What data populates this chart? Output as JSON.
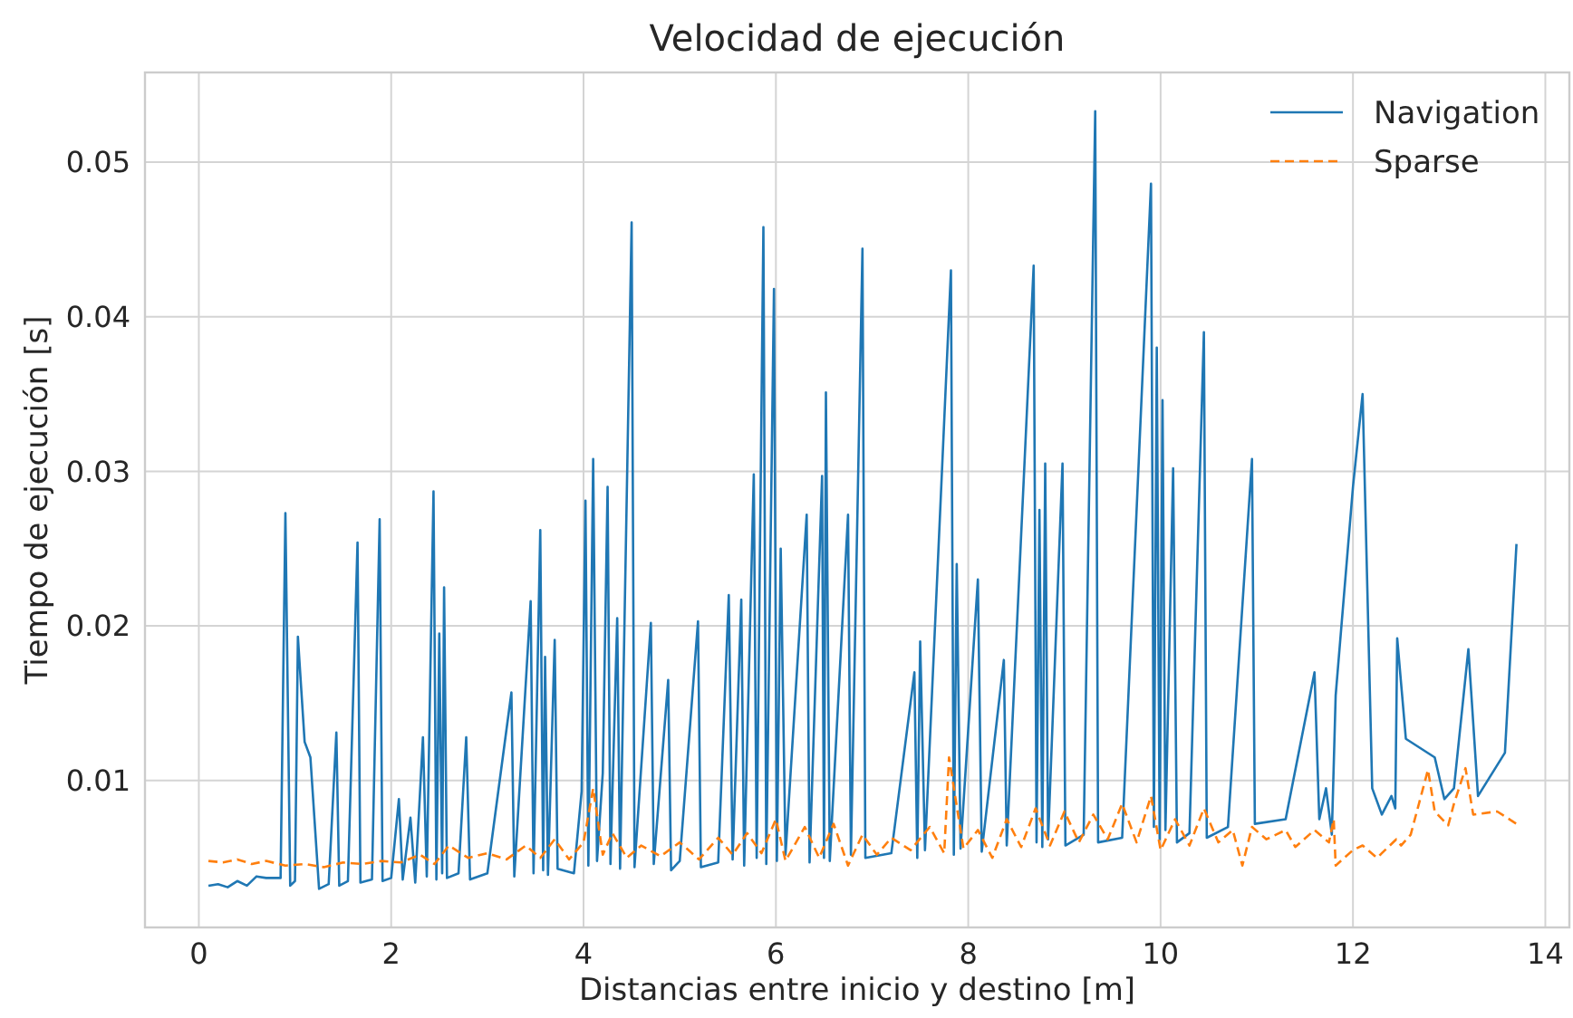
{
  "chart_data": {
    "type": "line",
    "title": "Velocidad de ejecución",
    "xlabel": "Distancias entre inicio y destino [m]",
    "ylabel": "Tiempo de ejecución [s]",
    "xlim": [
      -0.56,
      14.25
    ],
    "ylim": [
      0.0005,
      0.0558
    ],
    "xticks": [
      0,
      2,
      4,
      6,
      8,
      10,
      12,
      14
    ],
    "yticks": [
      0.01,
      0.02,
      0.03,
      0.04,
      0.05
    ],
    "grid": true,
    "legend": "top right",
    "series": [
      {
        "name": "Navigation",
        "color": "#1f77b4",
        "line_style": "solid",
        "x": [
          0.1,
          0.2,
          0.3,
          0.4,
          0.5,
          0.6,
          0.7,
          0.85,
          0.9,
          0.95,
          1.0,
          1.03,
          1.1,
          1.16,
          1.25,
          1.35,
          1.43,
          1.46,
          1.55,
          1.65,
          1.68,
          1.8,
          1.88,
          1.91,
          2.0,
          2.08,
          2.12,
          2.2,
          2.25,
          2.33,
          2.37,
          2.44,
          2.47,
          2.5,
          2.53,
          2.55,
          2.58,
          2.7,
          2.78,
          2.82,
          3.0,
          3.25,
          3.28,
          3.45,
          3.48,
          3.55,
          3.58,
          3.6,
          3.63,
          3.7,
          3.73,
          3.9,
          3.98,
          4.02,
          4.05,
          4.1,
          4.14,
          4.2,
          4.25,
          4.28,
          4.35,
          4.38,
          4.5,
          4.53,
          4.7,
          4.73,
          4.88,
          4.91,
          5.0,
          5.19,
          5.22,
          5.4,
          5.51,
          5.55,
          5.64,
          5.67,
          5.77,
          5.8,
          5.87,
          5.9,
          5.98,
          6.01,
          6.05,
          6.1,
          6.32,
          6.35,
          6.48,
          6.5,
          6.52,
          6.56,
          6.75,
          6.78,
          6.9,
          6.93,
          7.2,
          7.44,
          7.47,
          7.5,
          7.55,
          7.82,
          7.85,
          7.88,
          7.92,
          8.1,
          8.14,
          8.37,
          8.4,
          8.68,
          8.71,
          8.74,
          8.77,
          8.8,
          8.83,
          8.98,
          9.01,
          9.2,
          9.32,
          9.35,
          9.6,
          9.9,
          9.93,
          9.96,
          9.99,
          10.02,
          10.05,
          10.13,
          10.17,
          10.3,
          10.45,
          10.48,
          10.7,
          10.95,
          10.98,
          11.3,
          11.6,
          11.65,
          11.72,
          11.78,
          11.82,
          12.0,
          12.1,
          12.2,
          12.3,
          12.4,
          12.44,
          12.46,
          12.55,
          12.85,
          12.95,
          13.05,
          13.2,
          13.3,
          13.58,
          13.7
        ],
        "values": [
          0.0032,
          0.0033,
          0.0031,
          0.0035,
          0.0032,
          0.0038,
          0.0037,
          0.0037,
          0.0273,
          0.0032,
          0.0035,
          0.0193,
          0.0125,
          0.0115,
          0.003,
          0.0033,
          0.0131,
          0.0032,
          0.0035,
          0.0254,
          0.0034,
          0.0036,
          0.0269,
          0.0035,
          0.0037,
          0.0088,
          0.0036,
          0.0076,
          0.0034,
          0.0128,
          0.0038,
          0.0287,
          0.0036,
          0.0195,
          0.004,
          0.0225,
          0.0037,
          0.004,
          0.0128,
          0.0036,
          0.004,
          0.0157,
          0.0038,
          0.0216,
          0.004,
          0.0262,
          0.0042,
          0.018,
          0.0039,
          0.0191,
          0.0043,
          0.004,
          0.0093,
          0.0281,
          0.0045,
          0.0308,
          0.0048,
          0.0105,
          0.029,
          0.0046,
          0.0205,
          0.0043,
          0.0461,
          0.0044,
          0.0202,
          0.0046,
          0.0165,
          0.0042,
          0.0048,
          0.0203,
          0.0044,
          0.0047,
          0.022,
          0.0049,
          0.0217,
          0.0045,
          0.0298,
          0.005,
          0.0458,
          0.0046,
          0.0418,
          0.0048,
          0.025,
          0.0052,
          0.0272,
          0.0047,
          0.0297,
          0.005,
          0.0351,
          0.0048,
          0.0272,
          0.0052,
          0.0444,
          0.005,
          0.0053,
          0.017,
          0.005,
          0.019,
          0.0055,
          0.043,
          0.0052,
          0.024,
          0.0056,
          0.023,
          0.0054,
          0.0178,
          0.0058,
          0.0433,
          0.006,
          0.0275,
          0.0057,
          0.0305,
          0.0062,
          0.0305,
          0.0058,
          0.0065,
          0.0533,
          0.006,
          0.0063,
          0.0486,
          0.007,
          0.038,
          0.0062,
          0.0346,
          0.0068,
          0.0302,
          0.006,
          0.0066,
          0.039,
          0.0063,
          0.007,
          0.0308,
          0.0072,
          0.0075,
          0.017,
          0.0075,
          0.0095,
          0.0065,
          0.0155,
          0.029,
          0.035,
          0.0095,
          0.0078,
          0.009,
          0.0082,
          0.0192,
          0.0127,
          0.0115,
          0.0088,
          0.0095,
          0.0185,
          0.009,
          0.0118,
          0.0253
        ]
      },
      {
        "name": "Sparse",
        "color": "#ff7f0e",
        "line_style": "dashed",
        "x": [
          0.1,
          0.25,
          0.4,
          0.55,
          0.7,
          0.9,
          1.1,
          1.3,
          1.5,
          1.7,
          1.9,
          2.1,
          2.3,
          2.45,
          2.6,
          2.8,
          3.0,
          3.2,
          3.4,
          3.55,
          3.7,
          3.85,
          4.0,
          4.1,
          4.2,
          4.3,
          4.45,
          4.6,
          4.8,
          5.0,
          5.2,
          5.4,
          5.55,
          5.7,
          5.85,
          6.0,
          6.1,
          6.3,
          6.45,
          6.6,
          6.75,
          6.9,
          7.05,
          7.2,
          7.4,
          7.6,
          7.75,
          7.8,
          7.95,
          8.1,
          8.25,
          8.4,
          8.55,
          8.7,
          8.85,
          9.0,
          9.15,
          9.3,
          9.45,
          9.6,
          9.75,
          9.9,
          10.0,
          10.15,
          10.3,
          10.45,
          10.6,
          10.75,
          10.85,
          10.95,
          11.1,
          11.3,
          11.4,
          11.6,
          11.75,
          11.8,
          11.82,
          12.0,
          12.1,
          12.25,
          12.45,
          12.5,
          12.6,
          12.78,
          12.85,
          12.99,
          13.05,
          13.17,
          13.25,
          13.5,
          13.7
        ],
        "values": [
          0.0048,
          0.0047,
          0.0049,
          0.0046,
          0.0048,
          0.0045,
          0.0046,
          0.0044,
          0.0047,
          0.0046,
          0.0048,
          0.0047,
          0.0052,
          0.0046,
          0.0058,
          0.005,
          0.0053,
          0.0049,
          0.0058,
          0.005,
          0.0062,
          0.0049,
          0.006,
          0.0095,
          0.0052,
          0.0066,
          0.005,
          0.0058,
          0.0051,
          0.006,
          0.0049,
          0.0063,
          0.0052,
          0.0066,
          0.0053,
          0.0075,
          0.0048,
          0.007,
          0.005,
          0.0072,
          0.0045,
          0.0065,
          0.0052,
          0.0063,
          0.0055,
          0.007,
          0.0053,
          0.0115,
          0.0056,
          0.0068,
          0.005,
          0.0075,
          0.0057,
          0.0082,
          0.0058,
          0.008,
          0.006,
          0.0078,
          0.0062,
          0.0085,
          0.006,
          0.009,
          0.0055,
          0.0075,
          0.0058,
          0.0082,
          0.006,
          0.0068,
          0.0045,
          0.007,
          0.0062,
          0.0068,
          0.0057,
          0.0068,
          0.006,
          0.0075,
          0.0045,
          0.0055,
          0.0058,
          0.005,
          0.0062,
          0.0058,
          0.0065,
          0.0107,
          0.008,
          0.0071,
          0.0085,
          0.0108,
          0.0078,
          0.008,
          0.0072
        ]
      }
    ]
  }
}
